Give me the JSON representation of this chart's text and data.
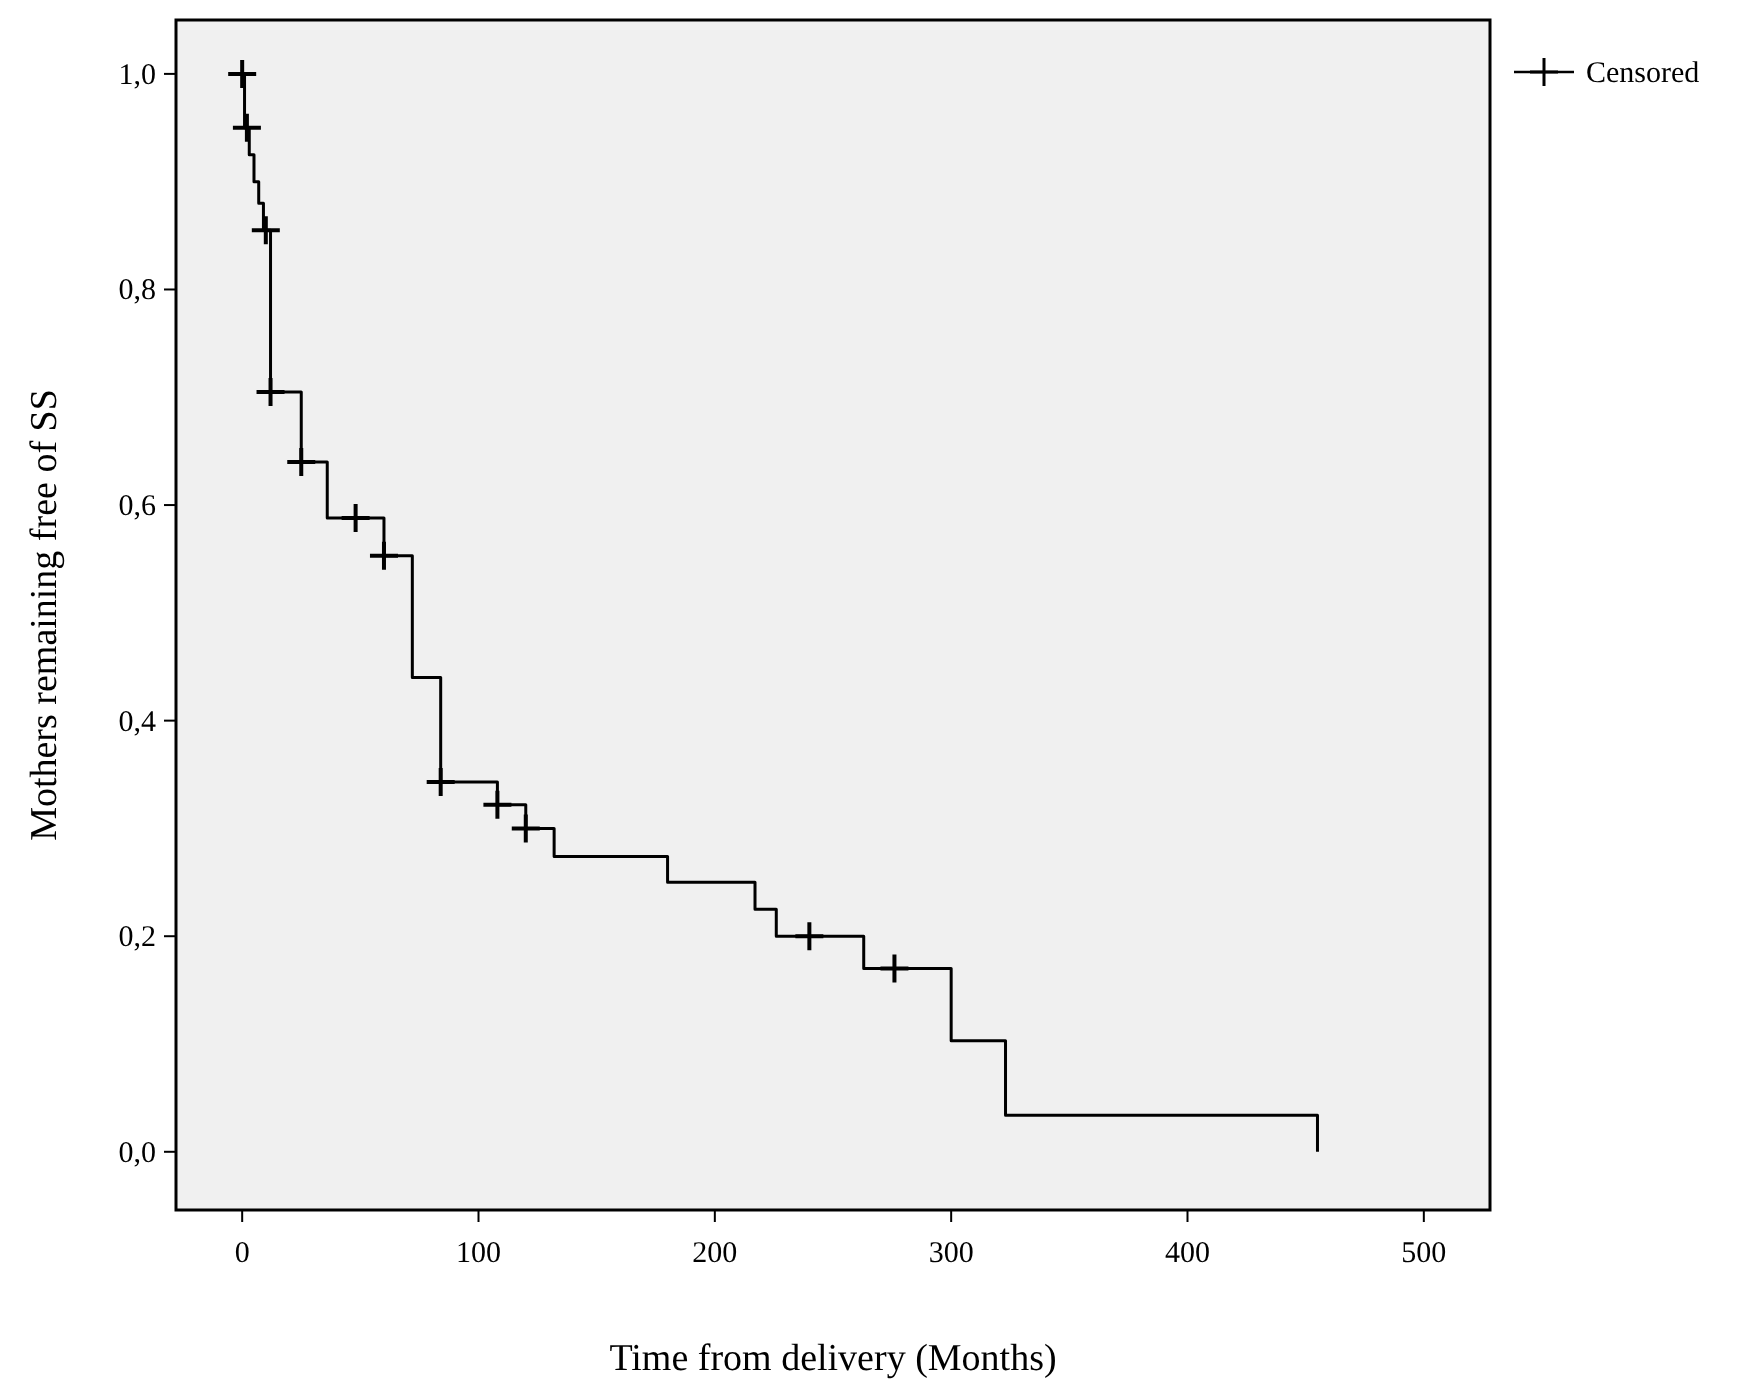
{
  "chart_data": {
    "type": "step",
    "xlabel": "Time from delivery (Months)",
    "ylabel": "Mothers remaining free of SS",
    "xlim": [
      -28,
      528
    ],
    "ylim": [
      -0.054,
      1.05
    ],
    "xticks": [
      0,
      100,
      200,
      300,
      400,
      500
    ],
    "yticks": [
      {
        "value": 0,
        "label": "0,0"
      },
      {
        "value": 0.2,
        "label": "0,2"
      },
      {
        "value": 0.4,
        "label": "0,4"
      },
      {
        "value": 0.6,
        "label": "0,6"
      },
      {
        "value": 0.8,
        "label": "0,8"
      },
      {
        "value": 1,
        "label": "1,0"
      }
    ],
    "grid": false,
    "legend": "top right",
    "series": [
      {
        "color": "#000000",
        "x": [
          0,
          1,
          3,
          5,
          7,
          9,
          12,
          25,
          36,
          60,
          72,
          84,
          108,
          120,
          132,
          180,
          217,
          226,
          263,
          300,
          323,
          455
        ],
        "values": [
          1,
          0.95,
          0.925,
          0.9,
          0.88,
          0.855,
          0.705,
          0.64,
          0.588,
          0.553,
          0.44,
          0.343,
          0.322,
          0.3,
          0.274,
          0.25,
          0.225,
          0.2,
          0.17,
          0.103,
          0.034,
          0
        ]
      },
      {
        "type": "scatter",
        "name": "Censored",
        "color": "#000000",
        "marker": "cross",
        "x": [
          0,
          2,
          10,
          12,
          25,
          48,
          60,
          84,
          108,
          120,
          240,
          276
        ],
        "values": [
          1,
          0.95,
          0.855,
          0.705,
          0.64,
          0.588,
          0.553,
          0.343,
          0.322,
          0.3,
          0.2,
          0.17
        ]
      }
    ]
  }
}
